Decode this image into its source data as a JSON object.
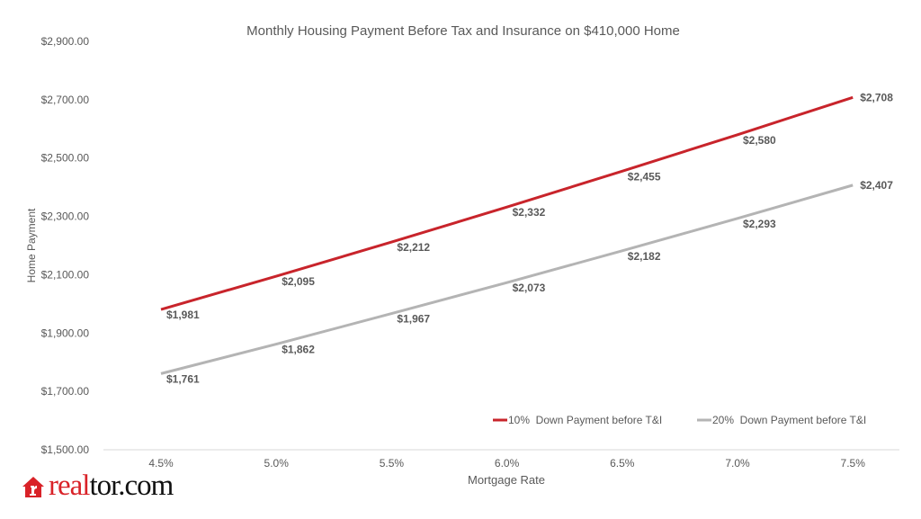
{
  "chart_data": {
    "type": "line",
    "title": "Monthly Housing Payment Before Tax and Insurance on $410,000 Home",
    "xlabel": "Mortgage Rate",
    "ylabel": "Home Payment",
    "categories": [
      "4.5%",
      "5.0%",
      "5.5%",
      "6.0%",
      "6.5%",
      "7.0%",
      "7.5%"
    ],
    "ylim": [
      1500,
      2900
    ],
    "yticks": [
      1500,
      1700,
      1900,
      2100,
      2300,
      2500,
      2700,
      2900
    ],
    "ytick_labels": [
      "$1,500.00",
      "$1,700.00",
      "$1,900.00",
      "$2,100.00",
      "$2,300.00",
      "$2,500.00",
      "$2,700.00",
      "$2,900.00"
    ],
    "grid": false,
    "legend_position": "bottom-right",
    "series": [
      {
        "name": "10%  Down Payment before T&I",
        "color": "#c8242b",
        "values": [
          1981,
          2095,
          2212,
          2332,
          2455,
          2580,
          2708
        ],
        "labels": [
          "$1,981",
          "$2,095",
          "$2,212",
          "$2,332",
          "$2,455",
          "$2,580",
          "$2,708"
        ]
      },
      {
        "name": "20%  Down Payment before T&I",
        "color": "#b4b4b4",
        "values": [
          1761,
          1862,
          1967,
          2073,
          2182,
          2293,
          2407
        ],
        "labels": [
          "$1,761",
          "$1,862",
          "$1,967",
          "$2,073",
          "$2,182",
          "$2,293",
          "$2,407"
        ]
      }
    ]
  },
  "logo": {
    "part1": "real",
    "part2": "tor.com",
    "icon": "house-icon"
  }
}
